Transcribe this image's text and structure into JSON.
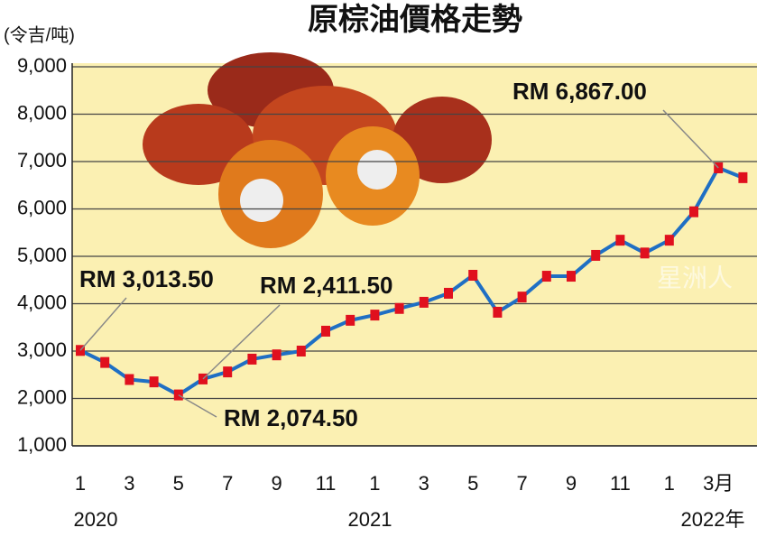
{
  "chart_data": {
    "type": "line",
    "title": "原棕油價格走勢",
    "y_axis_label": "(令吉/吨)",
    "watermark": "星洲人",
    "categories": [
      "1",
      null,
      "3",
      null,
      "5",
      null,
      "7",
      null,
      "9",
      null,
      "11",
      null,
      "1",
      null,
      "3",
      null,
      "5",
      null,
      "7",
      null,
      "9",
      null,
      "11",
      null,
      "1",
      null,
      "3月",
      null
    ],
    "year_labels": [
      "2020",
      "2021",
      "2022年"
    ],
    "series": [
      {
        "name": "原棕油價格",
        "color": "#1f6fc4",
        "marker_color": "#e0101e",
        "values": [
          3013.5,
          2760,
          2400,
          2350,
          2074.5,
          2411.5,
          2560,
          2830,
          2920,
          3000,
          3420,
          3650,
          3760,
          3900,
          4030,
          4220,
          4600,
          3820,
          4140,
          4580,
          4580,
          5020,
          5340,
          5070,
          5340,
          5940,
          6867,
          6660
        ]
      }
    ],
    "annotations": [
      "RM 3,013.50",
      "RM 2,411.50",
      "RM 2,074.50",
      "RM 6,867.00"
    ],
    "ylim": [
      1000,
      9000
    ],
    "yticks": [
      {
        "value": 1000,
        "label": "1,000"
      },
      {
        "value": 2000,
        "label": "2,000"
      },
      {
        "value": 3000,
        "label": "3,000"
      },
      {
        "value": 4000,
        "label": "4,000"
      },
      {
        "value": 5000,
        "label": "5,000"
      },
      {
        "value": 6000,
        "label": "6,000"
      },
      {
        "value": 7000,
        "label": "7,000"
      },
      {
        "value": 8000,
        "label": "8,000"
      },
      {
        "value": 9000,
        "label": "9,000"
      }
    ],
    "grid": true
  }
}
